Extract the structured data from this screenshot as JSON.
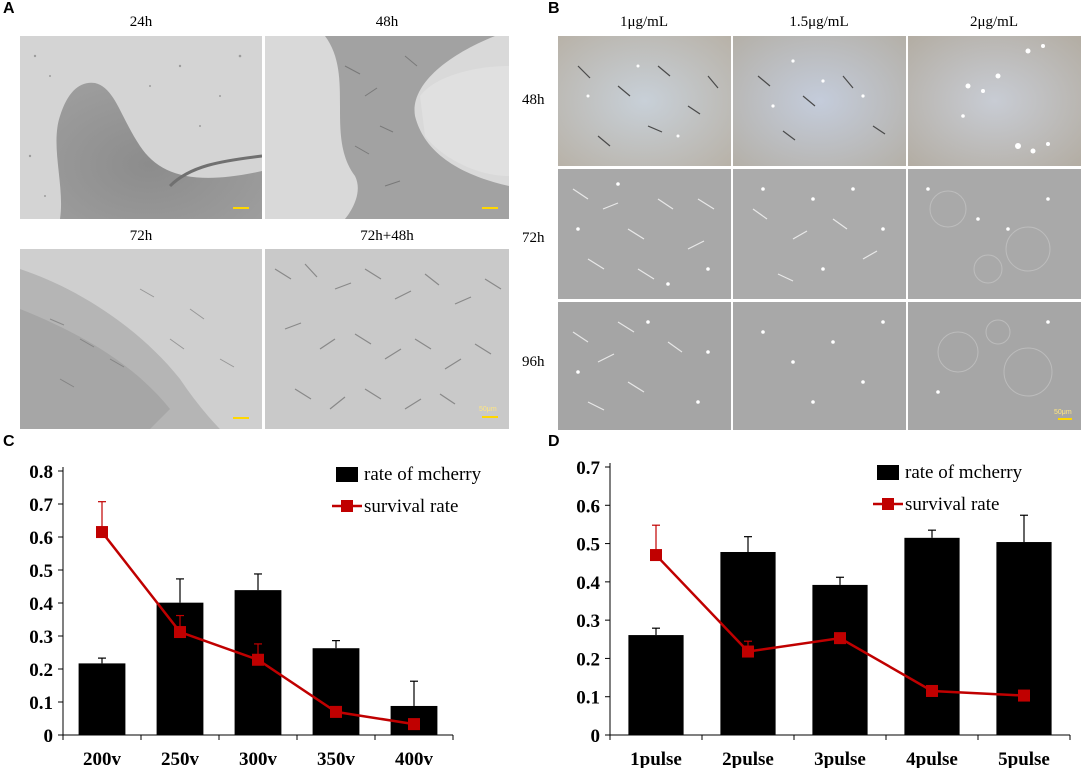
{
  "panels": {
    "A": {
      "letter": "A",
      "images": [
        {
          "label": "24h",
          "scale_label": ""
        },
        {
          "label": "48h",
          "scale_label": ""
        },
        {
          "label": "72h",
          "scale_label": ""
        },
        {
          "label": "72h+48h",
          "scale_label": "50μm"
        }
      ]
    },
    "B": {
      "letter": "B",
      "columns": [
        "1μg/mL",
        "1.5μg/mL",
        "2μg/mL"
      ],
      "rows": [
        "48h",
        "72h",
        "96h"
      ],
      "scale_label": "50μm"
    },
    "C": {
      "letter": "C"
    },
    "D": {
      "letter": "D"
    }
  },
  "chart_data": [
    {
      "id": "C",
      "type": "bar",
      "categories": [
        "200v",
        "250v",
        "300v",
        "350v",
        "400v"
      ],
      "series": [
        {
          "name": "rate of mcherry",
          "kind": "bar",
          "color": "#000000",
          "values": [
            0.217,
            0.401,
            0.439,
            0.263,
            0.088
          ],
          "errors": [
            0.016,
            0.072,
            0.049,
            0.023,
            0.075
          ]
        },
        {
          "name": "survival rate",
          "kind": "line",
          "color": "#c00000",
          "values": [
            0.615,
            0.312,
            0.228,
            0.07,
            0.033
          ],
          "errors": [
            0.092,
            0.05,
            0.048,
            0.0,
            0.0
          ]
        }
      ],
      "yticks": [
        "0",
        "0.1",
        "0.2",
        "0.3",
        "0.4",
        "0.5",
        "0.6",
        "0.7",
        "0.8"
      ],
      "ylim": [
        0,
        0.8
      ],
      "legend": "top-right",
      "grid": false
    },
    {
      "id": "D",
      "type": "bar",
      "categories": [
        "1pulse",
        "2pulse",
        "3pulse",
        "4pulse",
        "5pulse"
      ],
      "series": [
        {
          "name": "rate of mcherry",
          "kind": "bar",
          "color": "#000000",
          "values": [
            0.261,
            0.478,
            0.392,
            0.515,
            0.504
          ],
          "errors": [
            0.018,
            0.04,
            0.02,
            0.02,
            0.07
          ]
        },
        {
          "name": "survival rate",
          "kind": "line",
          "color": "#c00000",
          "values": [
            0.47,
            0.218,
            0.253,
            0.115,
            0.103
          ],
          "errors": [
            0.078,
            0.027,
            0.0,
            0.0,
            0.0
          ]
        }
      ],
      "yticks": [
        "0",
        "0.1",
        "0.2",
        "0.3",
        "0.4",
        "0.5",
        "0.6",
        "0.7"
      ],
      "ylim": [
        0,
        0.7
      ],
      "legend": "top-right",
      "grid": false
    }
  ]
}
